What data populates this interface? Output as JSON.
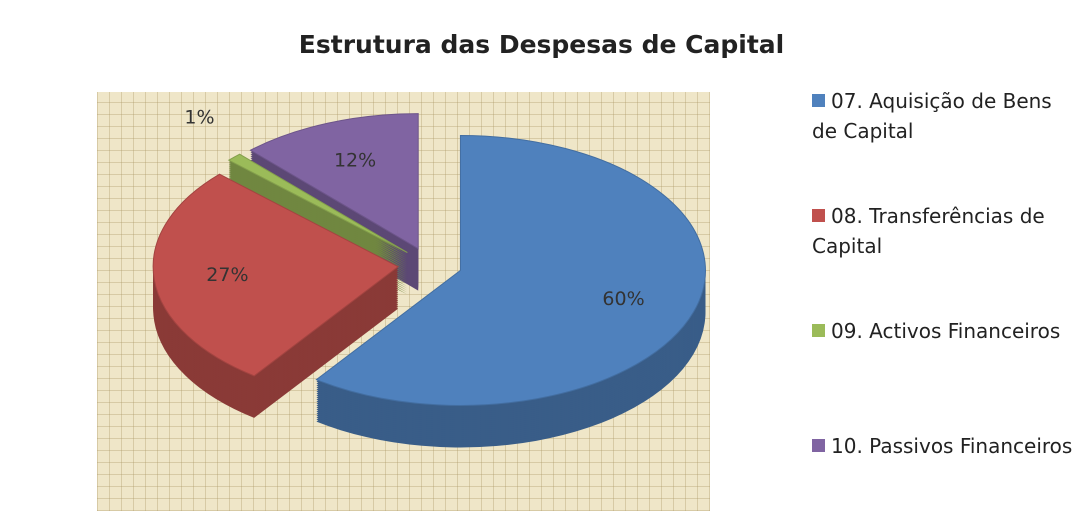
{
  "chart_data": {
    "type": "pie",
    "title": "Estrutura das Despesas de Capital",
    "categories": [
      "07. Aquisição de Bens de Capital",
      "08. Transferências de Capital",
      "09. Activos Financeiros",
      "10. Passivos Financeiros"
    ],
    "values": [
      60,
      27,
      1,
      12
    ],
    "value_labels": [
      "60%",
      "27%",
      "1%",
      "12%"
    ],
    "colors": [
      "#4f81bd",
      "#c0504d",
      "#9bbb59",
      "#8064a2"
    ],
    "legend": "right"
  }
}
